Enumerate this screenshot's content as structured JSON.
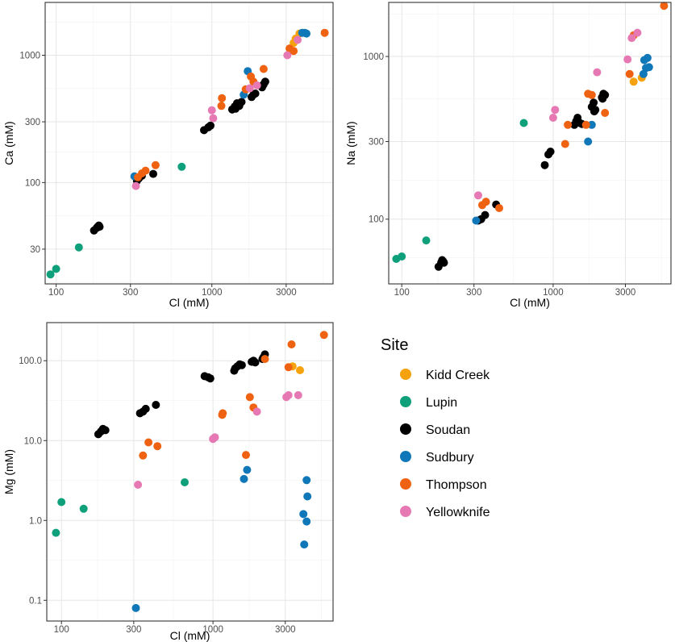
{
  "chart_data": [
    {
      "id": "ca",
      "type": "scatter",
      "scale": "log-log",
      "xlabel": "Cl (mM)",
      "ylabel": "Ca (mM)",
      "xlim": [
        85,
        6000
      ],
      "ylim": [
        16,
        2600
      ],
      "xticks": [
        {
          "v": 100,
          "label": "100"
        },
        {
          "v": 300,
          "label": "300"
        },
        {
          "v": 1000,
          "label": "1000"
        },
        {
          "v": 3000,
          "label": "3000"
        }
      ],
      "yticks": [
        {
          "v": 30,
          "label": "30"
        },
        {
          "v": 100,
          "label": "100"
        },
        {
          "v": 300,
          "label": "300"
        },
        {
          "v": 1000,
          "label": "1000"
        }
      ],
      "series": [
        {
          "name": "Kidd Creek",
          "points": [
            [
              3350,
              1250
            ],
            [
              3650,
              1480
            ],
            [
              3450,
              1350
            ]
          ]
        },
        {
          "name": "Lupin",
          "points": [
            [
              92,
              19
            ],
            [
              100,
              21
            ],
            [
              140,
              31
            ],
            [
              640,
              133
            ]
          ]
        },
        {
          "name": "Soudan",
          "points": [
            [
              175,
              42
            ],
            [
              182,
              44
            ],
            [
              185,
              45
            ],
            [
              188,
              46
            ],
            [
              190,
              45
            ],
            [
              330,
              103
            ],
            [
              340,
              108
            ],
            [
              355,
              113
            ],
            [
              420,
              117
            ],
            [
              890,
              258
            ],
            [
              950,
              272
            ],
            [
              980,
              280
            ],
            [
              1350,
              375
            ],
            [
              1400,
              395
            ],
            [
              1450,
              420
            ],
            [
              1500,
              400
            ],
            [
              1420,
              380
            ],
            [
              1550,
              430
            ],
            [
              1800,
              470
            ],
            [
              1850,
              490
            ],
            [
              1900,
              500
            ],
            [
              2100,
              560
            ],
            [
              2150,
              590
            ],
            [
              2200,
              620
            ],
            [
              2120,
              580
            ]
          ]
        },
        {
          "name": "Sudbury",
          "points": [
            [
              318,
              112
            ],
            [
              1600,
              490
            ],
            [
              1700,
              750
            ],
            [
              3800,
              1500
            ],
            [
              4050,
              1480
            ],
            [
              3950,
              1500
            ]
          ]
        },
        {
          "name": "Thompson",
          "points": [
            [
              335,
              110
            ],
            [
              355,
              118
            ],
            [
              375,
              124
            ],
            [
              435,
              137
            ],
            [
              1150,
              400
            ],
            [
              1160,
              460
            ],
            [
              1650,
              540
            ],
            [
              1780,
              680
            ],
            [
              1850,
              620
            ],
            [
              2150,
              780
            ],
            [
              3150,
              1130
            ],
            [
              3350,
              1080
            ],
            [
              5300,
              1500
            ]
          ]
        },
        {
          "name": "Yellowknife",
          "points": [
            [
              325,
              94
            ],
            [
              1000,
              370
            ],
            [
              1020,
              320
            ],
            [
              1750,
              550
            ],
            [
              1950,
              580
            ],
            [
              3050,
              1000
            ],
            [
              3550,
              1320
            ]
          ]
        }
      ]
    },
    {
      "id": "na",
      "type": "scatter",
      "scale": "log-log",
      "xlabel": "Cl (mM)",
      "ylabel": "Na (mM)",
      "xlim": [
        82,
        6000
      ],
      "ylim": [
        40,
        2150
      ],
      "xticks": [
        {
          "v": 100,
          "label": "100"
        },
        {
          "v": 300,
          "label": "300"
        },
        {
          "v": 1000,
          "label": "1000"
        },
        {
          "v": 3000,
          "label": "3000"
        }
      ],
      "yticks": [
        {
          "v": 100,
          "label": "100"
        },
        {
          "v": 300,
          "label": "300"
        },
        {
          "v": 1000,
          "label": "1000"
        }
      ],
      "series": [
        {
          "name": "Kidd Creek",
          "points": [
            [
              3400,
              700
            ],
            [
              3850,
              740
            ]
          ]
        },
        {
          "name": "Lupin",
          "points": [
            [
              92,
              57
            ],
            [
              100,
              59
            ],
            [
              145,
              74
            ],
            [
              640,
              390
            ]
          ]
        },
        {
          "name": "Soudan",
          "points": [
            [
              175,
              51
            ],
            [
              182,
              54
            ],
            [
              185,
              56
            ],
            [
              188,
              55
            ],
            [
              190,
              54
            ],
            [
              320,
              98
            ],
            [
              335,
              100
            ],
            [
              355,
              106
            ],
            [
              420,
              123
            ],
            [
              880,
              215
            ],
            [
              930,
              250
            ],
            [
              960,
              260
            ],
            [
              1380,
              380
            ],
            [
              1420,
              400
            ],
            [
              1450,
              420
            ],
            [
              1500,
              390
            ],
            [
              1550,
              385
            ],
            [
              1800,
              490
            ],
            [
              1850,
              520
            ],
            [
              1900,
              470
            ],
            [
              1870,
              460
            ],
            [
              2100,
              560
            ],
            [
              2150,
              590
            ],
            [
              2200,
              580
            ],
            [
              2120,
              550
            ]
          ]
        },
        {
          "name": "Sudbury",
          "points": [
            [
              310,
              98
            ],
            [
              1700,
              300
            ],
            [
              1800,
              380
            ],
            [
              4000,
              950
            ],
            [
              4200,
              980
            ],
            [
              4100,
              850
            ],
            [
              4300,
              860
            ],
            [
              3950,
              780
            ]
          ]
        },
        {
          "name": "Thompson",
          "points": [
            [
              340,
              122
            ],
            [
              360,
              128
            ],
            [
              440,
              117
            ],
            [
              1200,
              290
            ],
            [
              1250,
              380
            ],
            [
              1650,
              380
            ],
            [
              1700,
              590
            ],
            [
              1800,
              580
            ],
            [
              2200,
              450
            ],
            [
              3200,
              780
            ],
            [
              3400,
              1350
            ],
            [
              5400,
              2050
            ]
          ]
        },
        {
          "name": "Yellowknife",
          "points": [
            [
              320,
              140
            ],
            [
              1000,
              420
            ],
            [
              1030,
              470
            ],
            [
              1950,
              800
            ],
            [
              3100,
              960
            ],
            [
              3300,
              1300
            ],
            [
              3600,
              1400
            ]
          ]
        }
      ]
    },
    {
      "id": "mg",
      "type": "scatter",
      "scale": "log-log",
      "xlabel": "Cl (mM)",
      "ylabel": "Mg (mM)",
      "xlim": [
        80,
        6200
      ],
      "ylim": [
        0.055,
        300
      ],
      "xticks": [
        {
          "v": 100,
          "label": "100"
        },
        {
          "v": 300,
          "label": "300"
        },
        {
          "v": 1000,
          "label": "1000"
        },
        {
          "v": 3000,
          "label": "3000"
        }
      ],
      "yticks": [
        {
          "v": 0.1,
          "label": "0.1"
        },
        {
          "v": 1,
          "label": "1.0"
        },
        {
          "v": 10,
          "label": "10.0"
        },
        {
          "v": 100,
          "label": "100.0"
        }
      ],
      "series": [
        {
          "name": "Kidd Creek",
          "points": [
            [
              3350,
              85
            ],
            [
              3750,
              76
            ]
          ]
        },
        {
          "name": "Lupin",
          "points": [
            [
              92,
              0.7
            ],
            [
              100,
              1.7
            ],
            [
              140,
              1.4
            ],
            [
              650,
              3.0
            ]
          ]
        },
        {
          "name": "Soudan",
          "points": [
            [
              175,
              12
            ],
            [
              182,
              13
            ],
            [
              188,
              14
            ],
            [
              195,
              13.5
            ],
            [
              330,
              22
            ],
            [
              345,
              23
            ],
            [
              360,
              25
            ],
            [
              420,
              28
            ],
            [
              880,
              64
            ],
            [
              930,
              62
            ],
            [
              960,
              60
            ],
            [
              1400,
              80
            ],
            [
              1450,
              85
            ],
            [
              1500,
              90
            ],
            [
              1550,
              88
            ],
            [
              1380,
              75
            ],
            [
              1800,
              97
            ],
            [
              1850,
              100
            ],
            [
              1900,
              95
            ],
            [
              2150,
              110
            ],
            [
              2200,
              120
            ],
            [
              2120,
              105
            ]
          ]
        },
        {
          "name": "Sudbury",
          "points": [
            [
              310,
              0.08
            ],
            [
              1600,
              3.3
            ],
            [
              1680,
              4.3
            ],
            [
              3950,
              1.2
            ],
            [
              4150,
              3.2
            ],
            [
              4200,
              2.0
            ],
            [
              4150,
              0.97
            ],
            [
              4000,
              0.5
            ]
          ]
        },
        {
          "name": "Thompson",
          "points": [
            [
              345,
              6.5
            ],
            [
              375,
              9.5
            ],
            [
              430,
              8.5
            ],
            [
              1150,
              21
            ],
            [
              1160,
              22
            ],
            [
              1650,
              6.6
            ],
            [
              1750,
              35
            ],
            [
              1850,
              26
            ],
            [
              2200,
              105
            ],
            [
              3150,
              83
            ],
            [
              3300,
              160
            ],
            [
              5400,
              210
            ]
          ]
        },
        {
          "name": "Yellowknife",
          "points": [
            [
              320,
              2.8
            ],
            [
              1000,
              10.5
            ],
            [
              1030,
              11
            ],
            [
              1950,
              23
            ],
            [
              3050,
              35
            ],
            [
              3150,
              37
            ],
            [
              3650,
              37
            ]
          ]
        }
      ]
    }
  ],
  "legend": {
    "title": "Site",
    "items": [
      {
        "label": "Kidd Creek",
        "color": "#F5A20E"
      },
      {
        "label": "Lupin",
        "color": "#0EA07A"
      },
      {
        "label": "Soudan",
        "color": "#000000"
      },
      {
        "label": "Sudbury",
        "color": "#1077B8"
      },
      {
        "label": "Thompson",
        "color": "#EF6211"
      },
      {
        "label": "Yellowknife",
        "color": "#E679B3"
      }
    ]
  }
}
